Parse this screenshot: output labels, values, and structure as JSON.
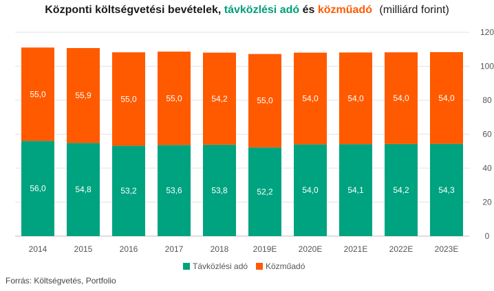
{
  "title_parts": {
    "prefix": "Központi költségvetési bevételek,",
    "series_a": "távközlési adó",
    "joiner": "és",
    "series_b": "közműadó",
    "unit": "(milliárd forint)"
  },
  "source": "Forrás: Költségvetés, Portfolio",
  "chart_data": {
    "type": "bar",
    "stacked": true,
    "categories": [
      "2014",
      "2015",
      "2016",
      "2017",
      "2018",
      "2019E",
      "2020E",
      "2021E",
      "2022E",
      "2023E"
    ],
    "series": [
      {
        "name": "Távközlési adó",
        "color": "#00a37f",
        "values": [
          56.0,
          54.8,
          53.2,
          53.6,
          53.8,
          52.2,
          54.0,
          54.1,
          54.2,
          54.3
        ],
        "labels": [
          "56,0",
          "54,8",
          "53,2",
          "53,6",
          "53,8",
          "52,2",
          "54,0",
          "54,1",
          "54,2",
          "54,3"
        ]
      },
      {
        "name": "Közműadó",
        "color": "#ff5a00",
        "values": [
          55.0,
          55.9,
          55.0,
          55.0,
          54.2,
          55.0,
          54.0,
          54.0,
          54.0,
          54.0
        ],
        "labels": [
          "55,0",
          "55,9",
          "55,0",
          "55,0",
          "54,2",
          "55,0",
          "54,0",
          "54,0",
          "54,0",
          "54,0"
        ]
      }
    ],
    "ylim": [
      0,
      120
    ],
    "yticks": [
      0,
      20,
      40,
      60,
      80,
      100,
      120
    ],
    "y_axis_side": "right",
    "grid": true,
    "legend": "bottom"
  }
}
